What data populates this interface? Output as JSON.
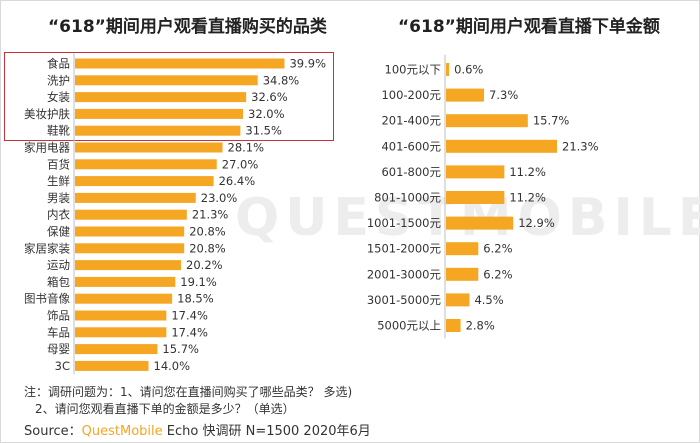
{
  "watermark": "QUESTMOBILE",
  "chart_data": [
    {
      "type": "bar",
      "orientation": "horizontal",
      "title": "“618”期间用户观看直播购买的品类",
      "categories": [
        "食品",
        "洗护",
        "女装",
        "美妆护肤",
        "鞋靴",
        "家用电器",
        "百货",
        "生鲜",
        "男装",
        "内衣",
        "保健",
        "家居家装",
        "运动",
        "箱包",
        "图书音像",
        "饰品",
        "车品",
        "母婴",
        "3C"
      ],
      "values": [
        39.9,
        34.8,
        32.6,
        32.0,
        31.5,
        28.1,
        27.0,
        26.4,
        23.0,
        21.3,
        20.8,
        20.8,
        20.2,
        19.1,
        18.5,
        17.4,
        17.4,
        15.7,
        14.0
      ],
      "value_labels": [
        "39.9%",
        "34.8%",
        "32.6%",
        "32.0%",
        "31.5%",
        "28.1%",
        "27.0%",
        "26.4%",
        "23.0%",
        "21.3%",
        "20.8%",
        "20.8%",
        "20.2%",
        "19.1%",
        "18.5%",
        "17.4%",
        "17.4%",
        "15.7%",
        "14.0%"
      ],
      "unit": "%",
      "highlighted_top": 5,
      "xlim": [
        0,
        40
      ],
      "bar_color": "#f5a623",
      "grid": false
    },
    {
      "type": "bar",
      "orientation": "horizontal",
      "title": "“618”期间用户观看直播下单金额",
      "categories": [
        "100元以下",
        "100-200元",
        "201-400元",
        "401-600元",
        "601-800元",
        "801-1000元",
        "1001-1500元",
        "1501-2000元",
        "2001-3000元",
        "3001-5000元",
        "5000元以上"
      ],
      "values": [
        0.6,
        7.3,
        15.7,
        21.3,
        11.2,
        11.2,
        12.9,
        6.2,
        6.2,
        4.5,
        2.8
      ],
      "value_labels": [
        "0.6%",
        "7.3%",
        "15.7%",
        "21.3%",
        "11.2%",
        "11.2%",
        "12.9%",
        "6.2%",
        "6.2%",
        "4.5%",
        "2.8%"
      ],
      "unit": "%",
      "xlim": [
        0,
        21.3
      ],
      "bar_color": "#f5a623",
      "grid": false
    }
  ],
  "footer": {
    "note1": "注：调研问题为：1、请问您在直播间购买了哪些品类？ 多选)",
    "note2": "2、请问您观看直播下单的金额是多少？（单选）",
    "source_prefix": "Source：",
    "source_brand": "QuestMobile",
    "source_suffix": " Echo 快调研 N=1500 2020年6月"
  },
  "colors": {
    "bar": "#f5a623",
    "highlight_border": "#c8323c",
    "brand": "#f5a623"
  }
}
